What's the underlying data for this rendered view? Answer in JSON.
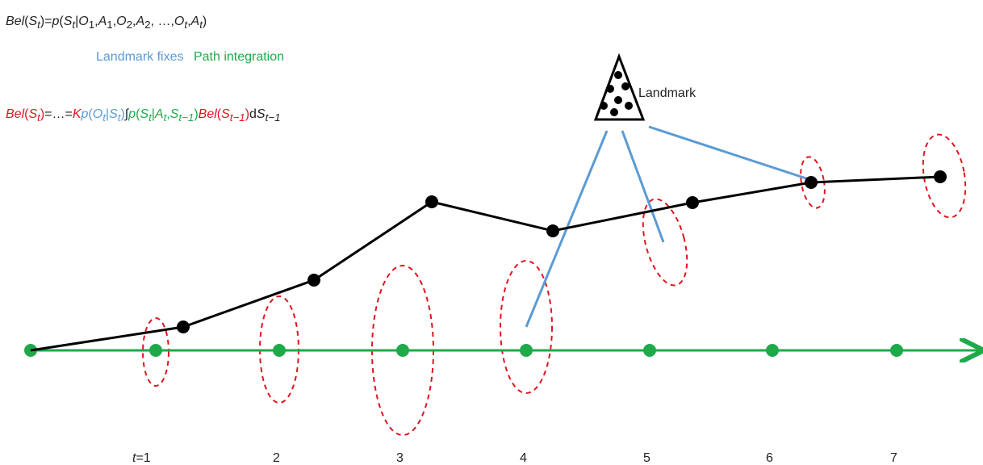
{
  "formula1": {
    "lhs": "Bel",
    "lhs_arg": "S",
    "lhs_sub": "t",
    "eq": "=",
    "p": "p",
    "open": "(",
    "S": "S",
    "S_sub": "t",
    "bar": "|",
    "O1": "O",
    "O1_sub": "1",
    "comma": ",",
    "A1": "A",
    "A1_sub": "1",
    "O2": "O",
    "O2_sub": "2",
    "A2": "A",
    "A2_sub": "2",
    "ellipsis": ", …,",
    "Ot": "O",
    "Ot_sub": "t",
    "At": "A",
    "At_sub": "t",
    "close": ")"
  },
  "legend": {
    "landmark_fixes": "Landmark fixes",
    "path_integration": "Path integration"
  },
  "formula2": {
    "lhs": "Bel",
    "lhs_arg": "S",
    "lhs_sub": "t",
    "eq": "=…=",
    "K": "K",
    "p": "p",
    "O": "O",
    "O_sub": "t",
    "bar": "|",
    "S": "S",
    "S_sub": "t",
    "integral": "∫",
    "p2": "p",
    "S2": "S",
    "S2_sub": "t",
    "bar2": "|",
    "A": "A",
    "A_sub": "t",
    "S3": "S",
    "S3_sub": "t−1",
    "bel2": "Bel",
    "S4": "S",
    "S4_sub": "t−1",
    "d": "d",
    "S5": "S",
    "S5_sub": "t−1"
  },
  "landmark_label": "Landmark",
  "time_labels": [
    "t",
    "=1",
    "2",
    "3",
    "4",
    "5",
    "6",
    "7"
  ],
  "colors": {
    "belief": "#e0141e",
    "landmark": "#5b9bd5",
    "path": "#1faa4a",
    "true_path": "#000000"
  }
}
